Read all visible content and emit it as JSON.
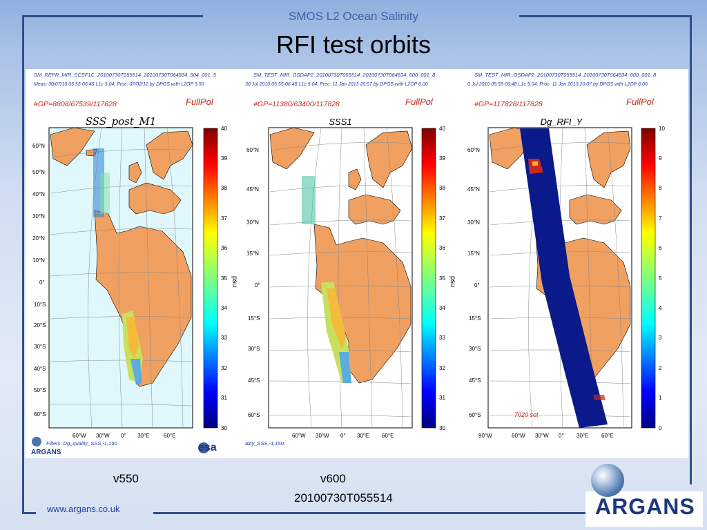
{
  "header": {
    "subtitle": "SMOS L2 Ocean Salinity",
    "title": "RFI test orbits"
  },
  "plots": [
    {
      "filename": "SM_REPR_MIR_SCSF1C_20100730T055514_20100730T064834_504_001_5",
      "meta": "Meas: 30/07/10 05:55-06:48 L1c 5.04; Proc: 07/02/12 by DPGS with L2OP 5.50",
      "gp": "#GP=8808/67539/117828",
      "pol": "FullPol",
      "title": "SSS_post_M1",
      "lat_labels": [
        "60°N",
        "50°N",
        "40°N",
        "30°N",
        "20°N",
        "10°N",
        "0°",
        "10°S",
        "20°S",
        "30°S",
        "40°S",
        "50°S",
        "60°S"
      ],
      "lon_labels": [
        "60°W",
        "30°W",
        "0°",
        "30°E",
        "60°E"
      ],
      "colorbar": {
        "label": "psu",
        "ticks": [
          "40",
          "39",
          "38",
          "37",
          "36",
          "35",
          "34",
          "33",
          "32",
          "31",
          "30"
        ]
      },
      "filters": "Filters: Dg_quality_SSS,-1,150",
      "logo_text": "ARGANS",
      "esa_text": "esa",
      "ocean_color": "#e0f7fb"
    },
    {
      "filename": "SM_TEST_MIR_OSDAP2_20100730T055514_20100730T064834_600_001_8",
      "meta": "30 Jul 2010 05:55-06:48 L1c 5.04; Proc: 11 Jan 2013 20:07 by DPGS with L2OP 6.00",
      "gp": "#GP=11380/63400/117828",
      "pol": "FullPol",
      "title": "SSS1",
      "lat_labels": [
        "60°N",
        "45°N",
        "30°N",
        "15°N",
        "0°",
        "15°S",
        "30°S",
        "45°S",
        "60°S"
      ],
      "lon_labels": [
        "60°W",
        "30°W",
        "0°",
        "30°E",
        "60°E"
      ],
      "colorbar": {
        "label": "psu",
        "ticks": [
          "40",
          "39",
          "38",
          "37",
          "36",
          "35",
          "34",
          "33",
          "32",
          "31",
          "30"
        ]
      },
      "filters": "ality_SSS,-1,150;",
      "ocean_color": "#ffffff"
    },
    {
      "filename": "SM_TEST_MIR_OSDAP2_20100730T055514_20100730T064834_600_001_8",
      "meta": "0 Jul 2010 05:55-06:48 L1c 5.04; Proc: 11 Jan 2013 20:07 by DPGS with L2OP 6.00",
      "gp": "#GP=117828/117828",
      "pol": "FullPol",
      "title": "Dg_RFI_Y",
      "lat_labels": [
        "60°N",
        "45°N",
        "30°N",
        "15°N",
        "0°",
        "15°S",
        "30°S",
        "45°S",
        "60°S"
      ],
      "lon_labels": [
        "90°W",
        "60°W",
        "30°W",
        "0°",
        "30°E",
        "60°E"
      ],
      "colorbar": {
        "label": "",
        "ticks": [
          "10",
          "9",
          "8",
          "7",
          "6",
          "5",
          "4",
          "3",
          "2",
          "1",
          "0"
        ]
      },
      "set_label": "7020 set",
      "ocean_color": "#ffffff"
    }
  ],
  "footer": {
    "v_left": "v550",
    "v_right": "v600",
    "timestamp": "20100730T055514",
    "url": "www.argans.co.uk",
    "logo": "ARGANS"
  },
  "colors": {
    "land": "#f0a060",
    "swath_dark": "#0a1a8a",
    "accent": "#c8281e",
    "link": "#1a3fa8"
  }
}
